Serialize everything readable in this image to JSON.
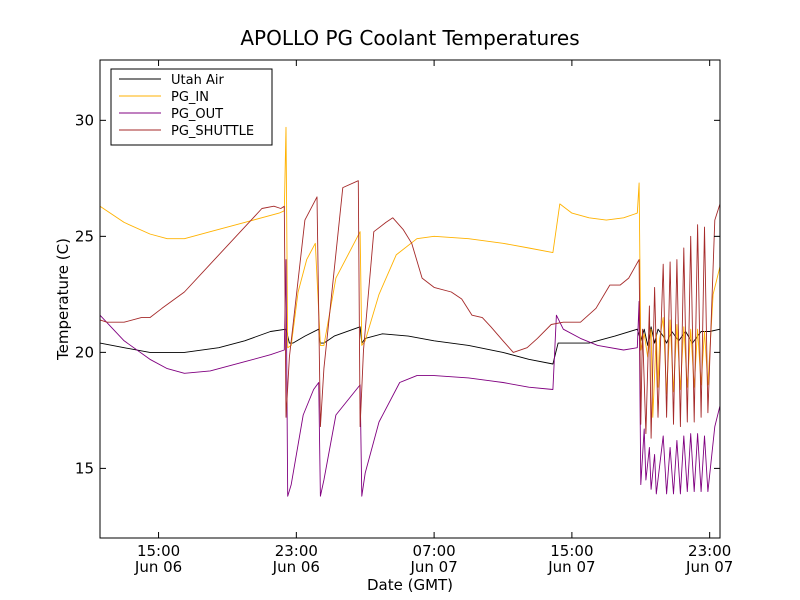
{
  "chart_data": {
    "type": "line",
    "title": "APOLLO PG Coolant Temperatures",
    "xlabel": "Date (GMT)",
    "ylabel": "Temperature (C)",
    "xlim": [
      11.6,
      47.6
    ],
    "ylim": [
      12,
      32.6
    ],
    "yticks": [
      15,
      20,
      25,
      30
    ],
    "xticks": [
      {
        "t": 15,
        "line1": "15:00",
        "line2": "Jun 06"
      },
      {
        "t": 23,
        "line1": "23:00",
        "line2": "Jun 06"
      },
      {
        "t": 31,
        "line1": "07:00",
        "line2": "Jun 07"
      },
      {
        "t": 39,
        "line1": "15:00",
        "line2": "Jun 07"
      },
      {
        "t": 47,
        "line1": "23:00",
        "line2": "Jun 07"
      }
    ],
    "legend_position": "top-left",
    "grid": false,
    "series": [
      {
        "name": "Utah Air",
        "color": "#000000",
        "points": [
          [
            11.6,
            20.4
          ],
          [
            13,
            20.2
          ],
          [
            14.5,
            20.0
          ],
          [
            16.5,
            20.0
          ],
          [
            18.5,
            20.2
          ],
          [
            20,
            20.5
          ],
          [
            21.5,
            20.9
          ],
          [
            22.4,
            21.0
          ],
          [
            22.6,
            20.4
          ],
          [
            22.8,
            20.4
          ],
          [
            23.5,
            20.7
          ],
          [
            24.3,
            21.0
          ],
          [
            24.4,
            20.4
          ],
          [
            24.6,
            20.4
          ],
          [
            25.2,
            20.7
          ],
          [
            26.7,
            21.1
          ],
          [
            26.8,
            20.4
          ],
          [
            27,
            20.6
          ],
          [
            28,
            20.8
          ],
          [
            29.5,
            20.7
          ],
          [
            31,
            20.5
          ],
          [
            33,
            20.3
          ],
          [
            35,
            20.0
          ],
          [
            36.5,
            19.7
          ],
          [
            37.9,
            19.5
          ],
          [
            38.2,
            20.4
          ],
          [
            40,
            20.4
          ],
          [
            41.5,
            20.7
          ],
          [
            42.8,
            21.0
          ],
          [
            43,
            20.5
          ],
          [
            43.2,
            21.0
          ],
          [
            43.4,
            20.3
          ],
          [
            43.6,
            21.1
          ],
          [
            43.8,
            20.4
          ],
          [
            44,
            21.0
          ],
          [
            44.3,
            20.7
          ],
          [
            44.5,
            20.4
          ],
          [
            44.8,
            20.9
          ],
          [
            45.2,
            20.5
          ],
          [
            45.6,
            20.9
          ],
          [
            46,
            20.4
          ],
          [
            46.5,
            20.9
          ],
          [
            47,
            20.9
          ],
          [
            47.6,
            21.0
          ]
        ]
      },
      {
        "name": "PG_IN",
        "color": "#FFB200",
        "points": [
          [
            11.6,
            26.3
          ],
          [
            13,
            25.6
          ],
          [
            14.5,
            25.1
          ],
          [
            15.5,
            24.9
          ],
          [
            16.5,
            24.9
          ],
          [
            18,
            25.2
          ],
          [
            20,
            25.6
          ],
          [
            22,
            26.0
          ],
          [
            22.3,
            26.1
          ],
          [
            22.4,
            29.7
          ],
          [
            22.5,
            20.2
          ],
          [
            22.7,
            20.3
          ],
          [
            23.1,
            22.6
          ],
          [
            23.6,
            24.0
          ],
          [
            24.1,
            24.7
          ],
          [
            24.4,
            20.3
          ],
          [
            24.6,
            20.3
          ],
          [
            25.3,
            23.2
          ],
          [
            26.7,
            25.2
          ],
          [
            26.8,
            20.3
          ],
          [
            27,
            20.5
          ],
          [
            27.8,
            22.5
          ],
          [
            28.8,
            24.2
          ],
          [
            30,
            24.9
          ],
          [
            31,
            25.0
          ],
          [
            33,
            24.9
          ],
          [
            35,
            24.7
          ],
          [
            36.5,
            24.5
          ],
          [
            37.9,
            24.3
          ],
          [
            38.3,
            26.4
          ],
          [
            39,
            26.0
          ],
          [
            40,
            25.8
          ],
          [
            41,
            25.7
          ],
          [
            42,
            25.8
          ],
          [
            42.8,
            26.0
          ],
          [
            42.9,
            27.3
          ],
          [
            43,
            20.1
          ],
          [
            43.2,
            20.8
          ],
          [
            43.4,
            19.8
          ],
          [
            43.6,
            21.0
          ],
          [
            43.7,
            17.2
          ],
          [
            43.9,
            20.8
          ],
          [
            44,
            18.5
          ],
          [
            44.1,
            20.6
          ],
          [
            44.3,
            21.5
          ],
          [
            44.5,
            18.2
          ],
          [
            44.7,
            21.4
          ],
          [
            44.9,
            18.3
          ],
          [
            45.1,
            21.2
          ],
          [
            45.3,
            18.4
          ],
          [
            45.5,
            21.1
          ],
          [
            45.7,
            18.5
          ],
          [
            45.9,
            21.0
          ],
          [
            46.1,
            18.5
          ],
          [
            46.3,
            21.0
          ],
          [
            46.5,
            18.6
          ],
          [
            46.7,
            20.9
          ],
          [
            46.9,
            18.6
          ],
          [
            47.2,
            22.5
          ],
          [
            47.6,
            23.7
          ]
        ]
      },
      {
        "name": "PG_OUT",
        "color": "#800080",
        "points": [
          [
            11.6,
            21.6
          ],
          [
            13,
            20.5
          ],
          [
            14.5,
            19.7
          ],
          [
            15.5,
            19.3
          ],
          [
            16.5,
            19.1
          ],
          [
            18,
            19.2
          ],
          [
            20,
            19.6
          ],
          [
            21.5,
            19.9
          ],
          [
            22.3,
            20.1
          ],
          [
            22.4,
            24.0
          ],
          [
            22.5,
            13.8
          ],
          [
            22.7,
            14.3
          ],
          [
            23.4,
            17.3
          ],
          [
            24,
            18.4
          ],
          [
            24.3,
            18.7
          ],
          [
            24.4,
            13.8
          ],
          [
            24.6,
            14.5
          ],
          [
            25.3,
            17.3
          ],
          [
            26.7,
            18.6
          ],
          [
            26.8,
            13.8
          ],
          [
            27,
            14.8
          ],
          [
            27.8,
            17.0
          ],
          [
            29,
            18.7
          ],
          [
            30,
            19.0
          ],
          [
            31,
            19.0
          ],
          [
            33,
            18.9
          ],
          [
            35,
            18.7
          ],
          [
            36.5,
            18.5
          ],
          [
            37.9,
            18.4
          ],
          [
            38.1,
            21.6
          ],
          [
            38.5,
            21.0
          ],
          [
            39.5,
            20.6
          ],
          [
            40.5,
            20.3
          ],
          [
            42,
            20.1
          ],
          [
            42.8,
            20.2
          ],
          [
            42.9,
            22.2
          ],
          [
            43,
            14.3
          ],
          [
            43.2,
            16.7
          ],
          [
            43.3,
            14.5
          ],
          [
            43.5,
            15.9
          ],
          [
            43.6,
            14.1
          ],
          [
            43.8,
            15.6
          ],
          [
            43.9,
            13.9
          ],
          [
            44.3,
            16.4
          ],
          [
            44.5,
            13.9
          ],
          [
            44.7,
            15.9
          ],
          [
            44.9,
            13.9
          ],
          [
            45.1,
            16.2
          ],
          [
            45.3,
            13.9
          ],
          [
            45.5,
            16.4
          ],
          [
            45.7,
            14.0
          ],
          [
            45.9,
            16.5
          ],
          [
            46.1,
            14.0
          ],
          [
            46.3,
            16.5
          ],
          [
            46.5,
            14.0
          ],
          [
            46.7,
            16.4
          ],
          [
            46.9,
            14.0
          ],
          [
            47.3,
            16.8
          ],
          [
            47.6,
            17.7
          ]
        ]
      },
      {
        "name": "PG_SHUTTLE",
        "color": "#A52A2A",
        "points": [
          [
            11.6,
            21.4
          ],
          [
            12,
            21.3
          ],
          [
            13,
            21.3
          ],
          [
            14,
            21.5
          ],
          [
            14.5,
            21.5
          ],
          [
            15.2,
            21.9
          ],
          [
            16.5,
            22.6
          ],
          [
            18,
            23.8
          ],
          [
            19.5,
            25.0
          ],
          [
            20.5,
            25.8
          ],
          [
            21,
            26.2
          ],
          [
            21.7,
            26.3
          ],
          [
            22.1,
            26.2
          ],
          [
            22.3,
            26.3
          ],
          [
            22.4,
            17.2
          ],
          [
            22.6,
            19.8
          ],
          [
            23.5,
            25.7
          ],
          [
            24.2,
            26.7
          ],
          [
            24.4,
            16.8
          ],
          [
            24.6,
            19.3
          ],
          [
            25.7,
            27.1
          ],
          [
            26.6,
            27.4
          ],
          [
            26.7,
            16.8
          ],
          [
            26.9,
            20.1
          ],
          [
            27.5,
            25.2
          ],
          [
            28.2,
            25.6
          ],
          [
            28.6,
            25.8
          ],
          [
            29.2,
            25.3
          ],
          [
            29.7,
            24.7
          ],
          [
            30.3,
            23.2
          ],
          [
            31,
            22.8
          ],
          [
            32,
            22.6
          ],
          [
            32.6,
            22.3
          ],
          [
            33.2,
            21.6
          ],
          [
            33.8,
            21.5
          ],
          [
            34.3,
            21.1
          ],
          [
            35,
            20.5
          ],
          [
            35.6,
            20.0
          ],
          [
            36.4,
            20.2
          ],
          [
            37,
            20.6
          ],
          [
            37.8,
            21.2
          ],
          [
            38.5,
            21.3
          ],
          [
            39.5,
            21.3
          ],
          [
            40.4,
            21.9
          ],
          [
            41.2,
            22.9
          ],
          [
            41.8,
            22.9
          ],
          [
            42.3,
            23.2
          ],
          [
            42.9,
            24.0
          ],
          [
            43,
            16.9
          ],
          [
            43.1,
            21.0
          ],
          [
            43.3,
            16.5
          ],
          [
            43.5,
            22.0
          ],
          [
            43.6,
            16.3
          ],
          [
            43.8,
            22.8
          ],
          [
            44,
            17.2
          ],
          [
            44.3,
            23.8
          ],
          [
            44.5,
            17.2
          ],
          [
            44.7,
            23.9
          ],
          [
            44.9,
            16.9
          ],
          [
            45.1,
            24.0
          ],
          [
            45.3,
            16.8
          ],
          [
            45.5,
            24.5
          ],
          [
            45.7,
            17.0
          ],
          [
            45.9,
            25.0
          ],
          [
            46.1,
            17.0
          ],
          [
            46.3,
            25.5
          ],
          [
            46.5,
            17.2
          ],
          [
            46.7,
            25.4
          ],
          [
            46.9,
            17.4
          ],
          [
            47.3,
            25.7
          ],
          [
            47.6,
            26.4
          ]
        ]
      }
    ]
  }
}
